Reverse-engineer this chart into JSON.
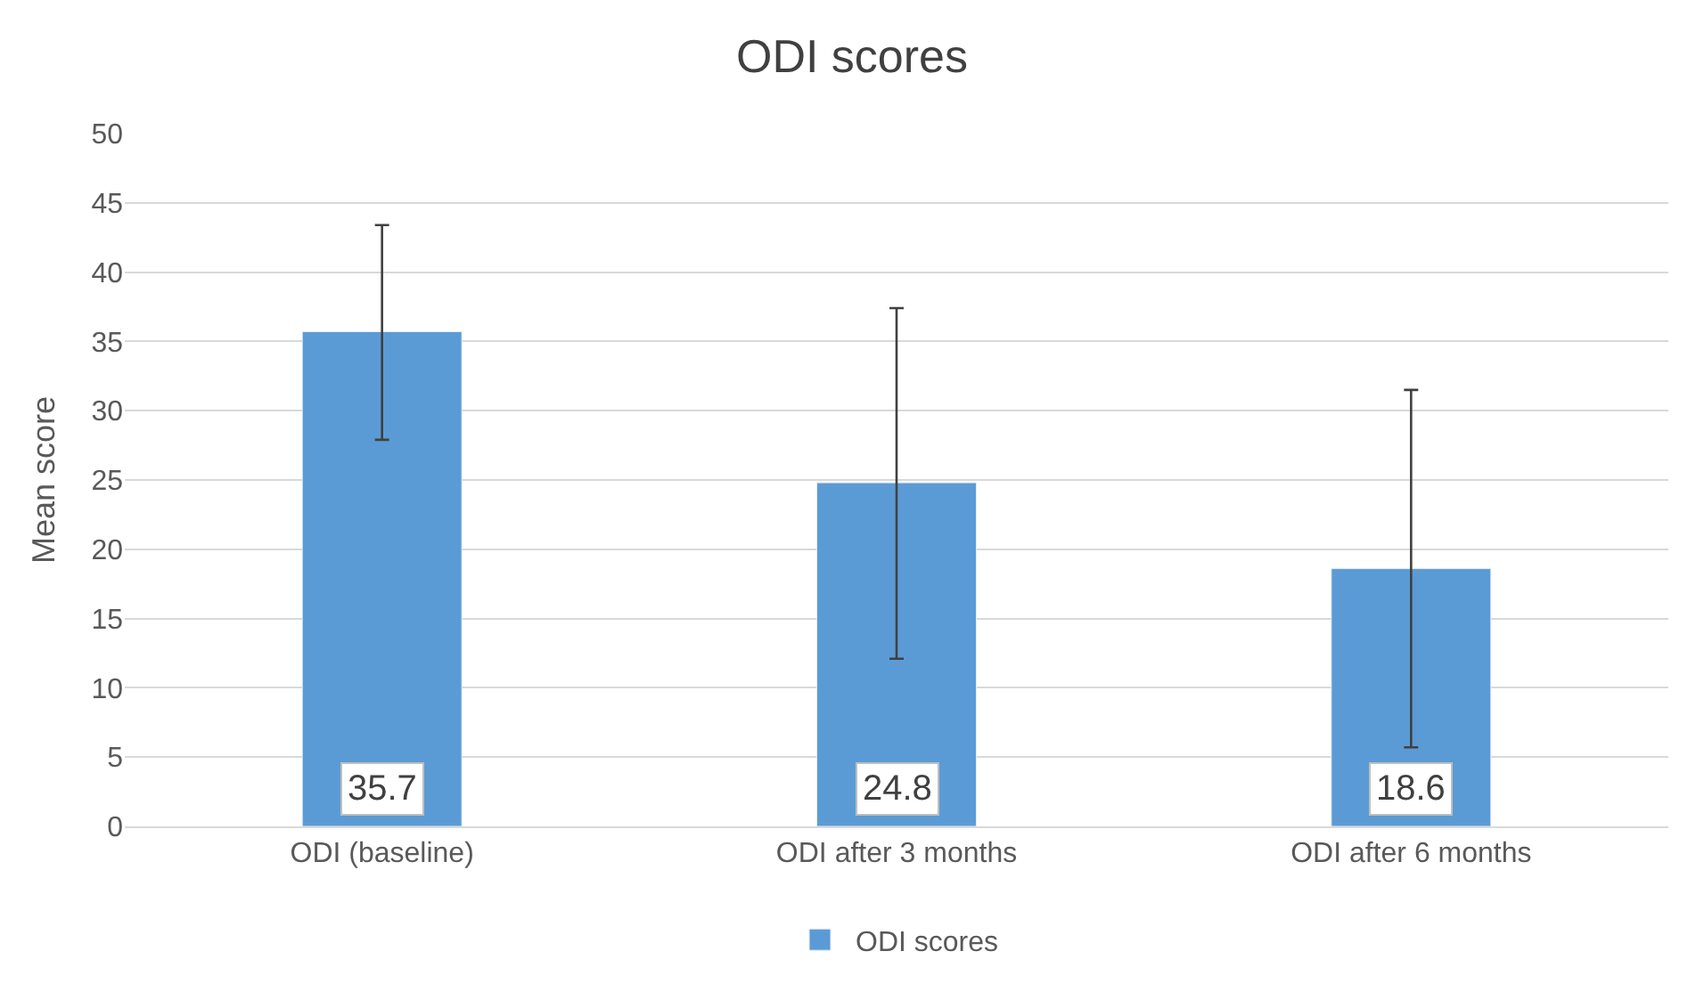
{
  "chart_data": {
    "type": "bar",
    "title": "ODI scores",
    "ylabel": "Mean score",
    "categories": [
      "ODI (baseline)",
      "ODI after 3 months",
      "ODI after 6 months"
    ],
    "series": [
      {
        "name": "ODI scores",
        "color": "#5b9bd5",
        "values": [
          35.7,
          24.8,
          18.6
        ],
        "errors": [
          [
            27.9,
            43.4
          ],
          [
            12.1,
            37.4
          ],
          [
            5.7,
            31.5
          ]
        ]
      }
    ],
    "ylim": [
      0,
      50
    ],
    "yticks": [
      0,
      5,
      10,
      15,
      20,
      25,
      30,
      35,
      40,
      45,
      50
    ],
    "grid": "y",
    "legend": "bottom",
    "data_labels": true
  }
}
